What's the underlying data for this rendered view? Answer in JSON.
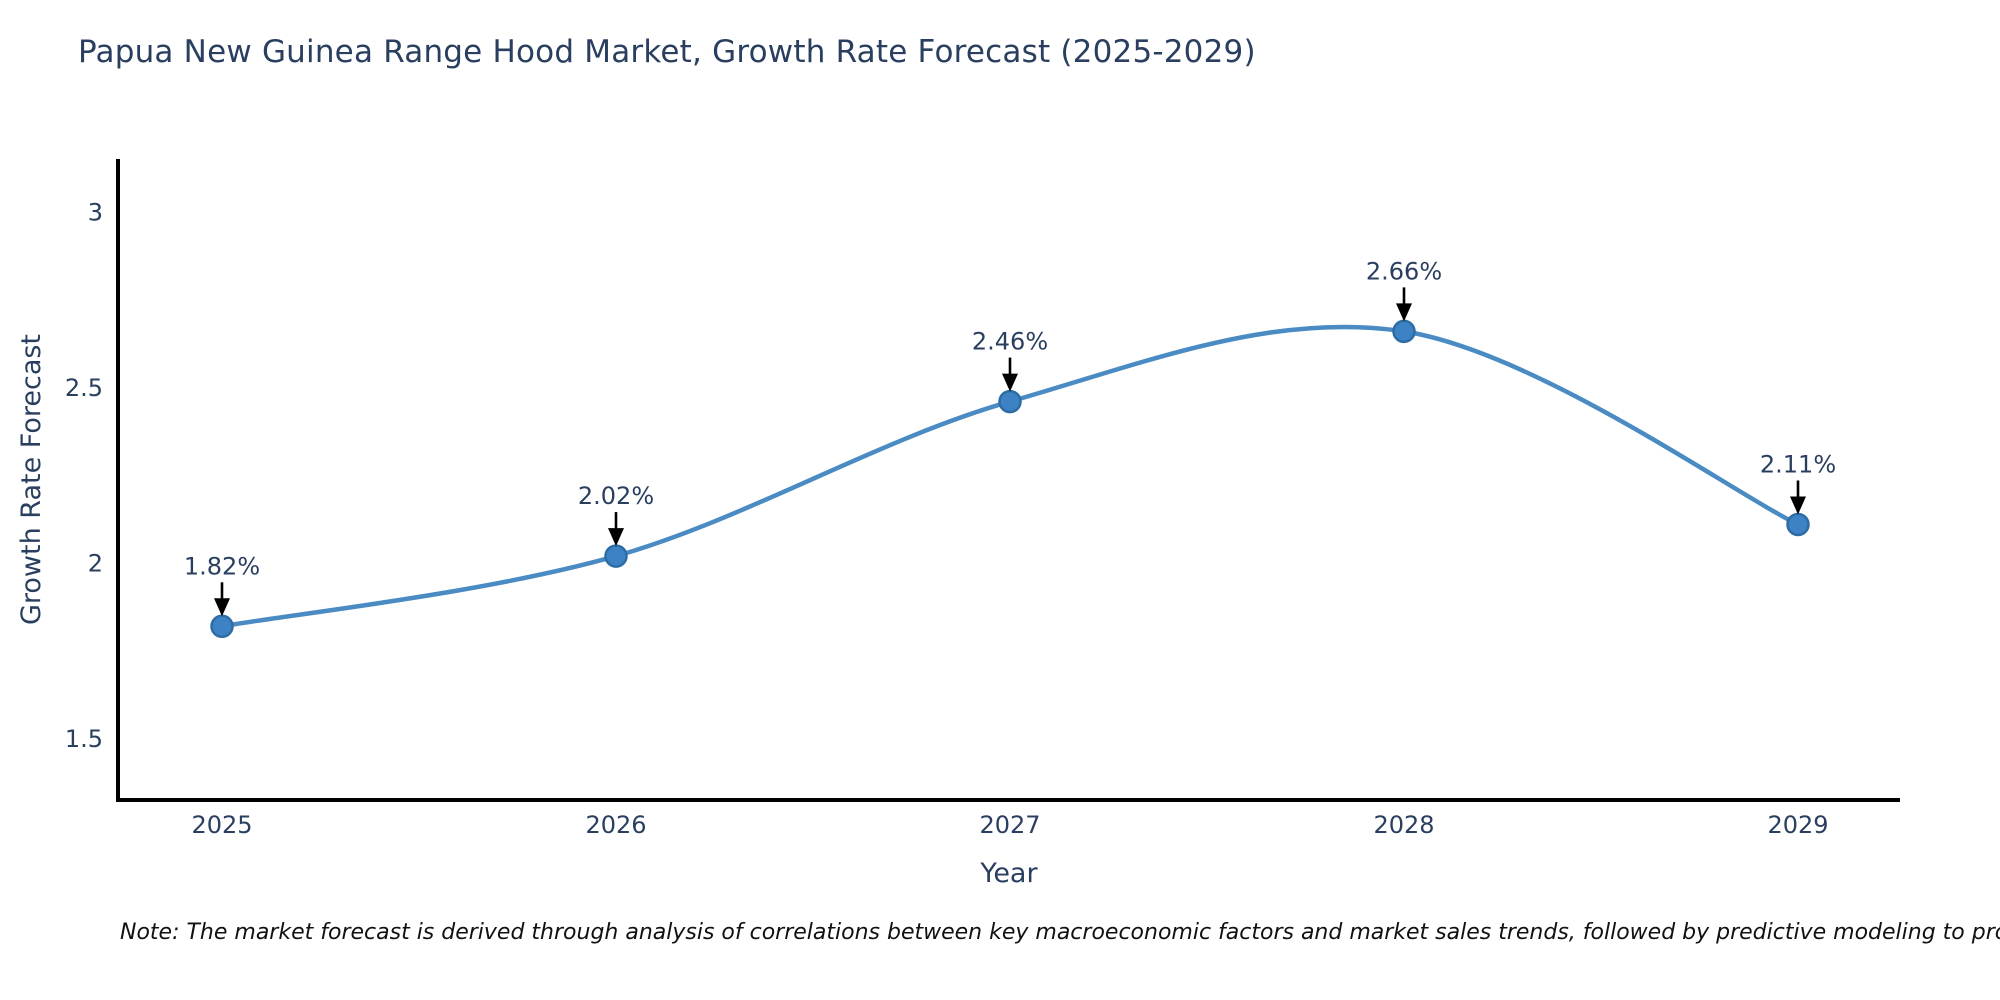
{
  "title": "Papua New Guinea Range Hood Market, Growth Rate Forecast (2025-2029)",
  "note": "Note: The market forecast is derived through analysis of correlations between key macroeconomic factors and market sales trends, followed by predictive modeling to project future sales",
  "chart_data": {
    "type": "line",
    "title": "Papua New Guinea Range Hood Market, Growth Rate Forecast (2025-2029)",
    "xlabel": "Year",
    "ylabel": "Growth Rate Forecast",
    "categories": [
      "2025",
      "2026",
      "2027",
      "2028",
      "2029"
    ],
    "series": [
      {
        "name": "Growth Rate Forecast",
        "values": [
          1.82,
          2.02,
          2.46,
          2.66,
          2.11
        ]
      }
    ],
    "point_labels": [
      "1.82%",
      "2.02%",
      "2.46%",
      "2.66%",
      "2.11%"
    ],
    "y_ticks": [
      3,
      2.5,
      2,
      1.5
    ],
    "ylim": [
      1.32,
      3.15
    ],
    "grid": false,
    "legend": "none",
    "marker_style": "circle",
    "annotation_style": "label-with-down-arrow",
    "colors": {
      "line": "#4a8bc4",
      "marker_fill": "#3d82c4",
      "marker_edge": "#2e6ca4",
      "annotation_arrow": "#000000",
      "axis": "#000000",
      "tick_text": "#2a3f5f",
      "label_text": "#2a3f5f",
      "background": "#ffffff"
    }
  }
}
